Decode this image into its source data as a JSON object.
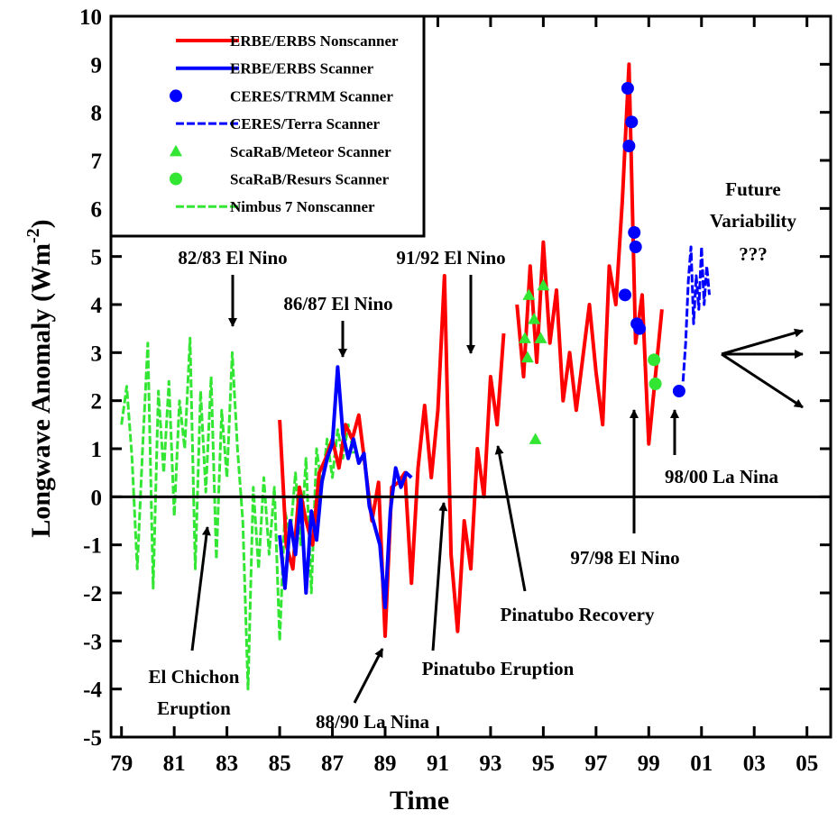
{
  "chart_data": {
    "type": "line",
    "x_label": "Time",
    "y_label": "Longwave Anomaly (Wm",
    "y_label_superscript": "-2",
    "y_label_end": ")",
    "xlim": [
      78.6,
      105.9
    ],
    "ylim": [
      -5,
      10
    ],
    "xticks": [
      79,
      81,
      83,
      85,
      87,
      89,
      91,
      93,
      95,
      97,
      99,
      {
        "value": 101,
        "label": "01"
      },
      {
        "value": 103,
        "label": "03"
      },
      {
        "value": 105,
        "label": "05"
      }
    ],
    "yticks": [
      -5,
      -4,
      -3,
      -2,
      -1,
      0,
      1,
      2,
      3,
      4,
      5,
      6,
      7,
      8,
      9,
      10
    ],
    "reference_line": 0,
    "series": [
      {
        "name": "ERBE/ERBS Nonscanner",
        "color": "#ff0000",
        "style": "line",
        "x": [
          85.0,
          85.25,
          85.5,
          85.75,
          86.0,
          86.25,
          86.5,
          86.75,
          87.0,
          87.25,
          87.5,
          87.75,
          88.0,
          88.25,
          88.5,
          88.75,
          89.0,
          89.25,
          89.5,
          89.75,
          90.0,
          90.25,
          90.5,
          90.75,
          91.0,
          91.25,
          91.5,
          91.75,
          92.0,
          92.25,
          92.5,
          92.75,
          93.0,
          93.25,
          93.5,
          93.75,
          94.0,
          94.25,
          94.5,
          94.75,
          95.0,
          95.25,
          95.5,
          95.75,
          96.0,
          96.25,
          96.5,
          96.75,
          97.0,
          97.25,
          97.5,
          97.75,
          98.0,
          98.25,
          98.5,
          98.75,
          99.0,
          99.25,
          99.5
        ],
        "values": [
          1.6,
          -1.0,
          -1.5,
          0.2,
          -0.5,
          -1.0,
          0.5,
          0.8,
          1.2,
          0.6,
          1.5,
          1.2,
          1.7,
          0.6,
          -0.5,
          0.3,
          -2.9,
          0.2,
          0.3,
          0.5,
          -1.8,
          0.6,
          1.9,
          0.4,
          1.8,
          4.6,
          -1.2,
          -2.8,
          -0.5,
          -1.5,
          1.0,
          0.0,
          2.5,
          1.5,
          3.4,
          null,
          4.0,
          2.5,
          4.8,
          2.8,
          5.3,
          3.2,
          4.3,
          2.0,
          3.0,
          1.8,
          2.9,
          4.0,
          2.6,
          1.5,
          4.8,
          4.0,
          6.2,
          9.0,
          3.2,
          4.2,
          1.1,
          2.5,
          3.9
        ]
      },
      {
        "name": "ERBE/ERBS Scanner",
        "color": "#0000ff",
        "style": "line",
        "x": [
          85.0,
          85.2,
          85.4,
          85.6,
          85.8,
          86.0,
          86.2,
          86.4,
          86.6,
          86.8,
          87.0,
          87.2,
          87.4,
          87.6,
          87.8,
          88.0,
          88.2,
          88.4,
          88.6,
          88.8,
          89.0,
          89.2,
          89.4,
          89.6,
          89.8,
          90.0
        ],
        "values": [
          -0.8,
          -1.9,
          -0.5,
          -1.2,
          0.0,
          -2.0,
          -0.3,
          -0.9,
          0.3,
          0.8,
          1.1,
          2.7,
          1.3,
          0.8,
          1.2,
          0.7,
          0.9,
          -0.2,
          -0.6,
          -1.0,
          -2.3,
          -0.3,
          0.6,
          0.2,
          0.5,
          0.4
        ]
      },
      {
        "name": "CERES/TRMM Scanner",
        "color": "#0000ff",
        "style": "circle",
        "x": [
          98.1,
          98.2,
          98.25,
          98.35,
          98.45,
          98.5,
          98.55,
          98.65,
          100.15
        ],
        "values": [
          4.2,
          8.5,
          7.3,
          7.8,
          5.5,
          5.2,
          3.6,
          3.5,
          2.2
        ]
      },
      {
        "name": "CERES/Terra Scanner",
        "color": "#0000ff",
        "style": "dashed",
        "x": [
          100.3,
          100.4,
          100.5,
          100.6,
          100.7,
          100.8,
          100.9,
          101.0,
          101.1,
          101.2,
          101.3
        ],
        "values": [
          2.4,
          3.2,
          4.5,
          5.2,
          3.6,
          4.6,
          3.9,
          5.2,
          4.0,
          4.8,
          4.2
        ]
      },
      {
        "name": "ScaRaB/Meteor Scanner",
        "color": "#33e633",
        "style": "triangle",
        "x": [
          94.3,
          94.4,
          94.45,
          94.65,
          94.7,
          94.9,
          95.0
        ],
        "values": [
          3.3,
          2.9,
          4.2,
          3.7,
          1.2,
          3.3,
          4.4
        ]
      },
      {
        "name": "ScaRaB/Resurs Scanner",
        "color": "#33e633",
        "style": "circle",
        "x": [
          99.2,
          99.25
        ],
        "values": [
          2.85,
          2.35
        ]
      },
      {
        "name": "Nimbus 7 Nonscanner",
        "color": "#33e633",
        "style": "dashed",
        "x": [
          79.0,
          79.2,
          79.4,
          79.6,
          79.8,
          80.0,
          80.2,
          80.4,
          80.6,
          80.8,
          81.0,
          81.2,
          81.4,
          81.6,
          81.8,
          82.0,
          82.2,
          82.4,
          82.6,
          82.8,
          83.0,
          83.2,
          83.4,
          83.6,
          83.8,
          84.0,
          84.2,
          84.4,
          84.6,
          84.8,
          85.0,
          85.2,
          85.4,
          85.6,
          85.8,
          86.0,
          86.2,
          86.4,
          86.6,
          86.8,
          87.0,
          87.2,
          87.4,
          87.6,
          87.8
        ],
        "values": [
          1.5,
          2.3,
          0.8,
          -1.5,
          1.0,
          3.2,
          -1.9,
          2.2,
          0.5,
          2.4,
          -0.4,
          2.0,
          1.0,
          3.3,
          -1.5,
          2.2,
          0.1,
          2.5,
          -1.3,
          1.8,
          0.4,
          3.0,
          1.0,
          -0.5,
          -4.0,
          0.2,
          -1.5,
          0.4,
          -1.2,
          0.2,
          -3.0,
          -0.3,
          -0.8,
          0.5,
          -1.0,
          0.8,
          -2.0,
          1.0,
          0.2,
          1.2,
          0.4,
          1.4,
          0.8,
          1.5,
          0.9
        ]
      }
    ],
    "annotations": {
      "el_nino_82_83": "82/83 El Nino",
      "el_nino_86_87": "86/87 El Nino",
      "el_nino_91_92": "91/92 El Nino",
      "future": [
        "Future",
        "Variability",
        "???"
      ],
      "el_chichon": [
        "El Chichon",
        "Eruption"
      ],
      "la_nina_88_90": "88/90 La Nina",
      "pinatubo_eruption": "Pinatubo Eruption",
      "pinatubo_recovery": "Pinatubo Recovery",
      "el_nino_97_98": "97/98 El Nino",
      "la_nina_98_00": "98/00 La Nina"
    }
  }
}
